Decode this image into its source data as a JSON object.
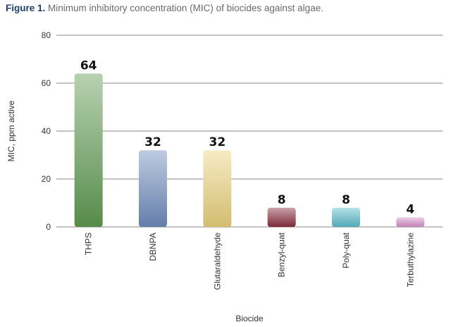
{
  "figure": {
    "lead": "Figure 1.",
    "caption": "Minimum inhibitory concentration (MIC) of biocides against algae."
  },
  "chart_data": {
    "type": "bar",
    "categories": [
      "THPS",
      "DBNPA",
      "Glutaraldehyde",
      "Benzyl-quat",
      "Poly-quat",
      "Terbuthylazine"
    ],
    "values": [
      64,
      32,
      32,
      8,
      8,
      4
    ],
    "data_labels": [
      "64",
      "32",
      "32",
      "8",
      "8",
      "4"
    ],
    "xlabel": "Biocide",
    "ylabel": "MIC, ppm active",
    "ylim": [
      0,
      80
    ],
    "yticks": [
      0,
      20,
      40,
      60,
      80
    ],
    "grid": true,
    "colors": [
      "#5f9a52",
      "#6f8cbd",
      "#ead27e",
      "#8a2d3e",
      "#5bbccb",
      "#d58fc8"
    ]
  }
}
